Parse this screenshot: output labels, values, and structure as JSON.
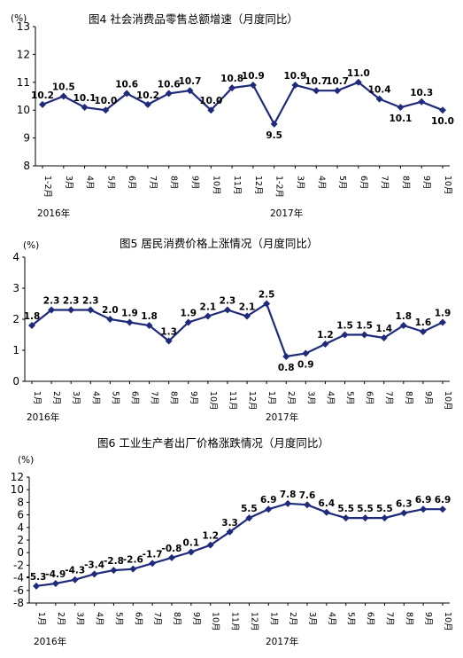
{
  "chart_data": [
    {
      "type": "line",
      "title": "图4  社会消费品零售总额增速（月度同比）",
      "unit": "(%)",
      "ylim": [
        8,
        13
      ],
      "yticks": [
        "8",
        "9",
        "10",
        "11",
        "12",
        "13"
      ],
      "categories": [
        "1-2月",
        "3月",
        "4月",
        "5月",
        "6月",
        "7月",
        "8月",
        "9月",
        "10月",
        "11月",
        "12月",
        "1-2月",
        "3月",
        "4月",
        "5月",
        "6月",
        "7月",
        "8月",
        "9月",
        "10月"
      ],
      "years": [
        "2016年",
        "2017年"
      ],
      "values": [
        10.2,
        10.5,
        10.1,
        10.0,
        10.6,
        10.2,
        10.6,
        10.7,
        10.0,
        10.8,
        10.9,
        9.5,
        10.9,
        10.7,
        10.7,
        11.0,
        10.4,
        10.1,
        10.3,
        10.0
      ],
      "labels": [
        "10.2",
        "10.5",
        "10.1",
        "10.0",
        "10.6",
        "10.2",
        "10.6",
        "10.7",
        "10.0",
        "10.8",
        "10.9",
        "9.5",
        "10.9",
        "10.7",
        "10.7",
        "11.0",
        "10.4",
        "10.1",
        "10.3",
        "10.0"
      ],
      "color": "#1f2a7a",
      "grid": false
    },
    {
      "type": "line",
      "title": "图5  居民消费价格上涨情况（月度同比）",
      "unit": "(%)",
      "ylim": [
        0,
        4
      ],
      "yticks": [
        "0",
        "1",
        "2",
        "3",
        "4"
      ],
      "categories": [
        "1月",
        "2月",
        "3月",
        "4月",
        "5月",
        "6月",
        "7月",
        "8月",
        "9月",
        "10月",
        "11月",
        "12月",
        "1月",
        "2月",
        "3月",
        "4月",
        "5月",
        "6月",
        "7月",
        "8月",
        "9月",
        "10月"
      ],
      "years": [
        "2016年",
        "2017年"
      ],
      "values": [
        1.8,
        2.3,
        2.3,
        2.3,
        2.0,
        1.9,
        1.8,
        1.3,
        1.9,
        2.1,
        2.3,
        2.1,
        2.5,
        0.8,
        0.9,
        1.2,
        1.5,
        1.5,
        1.4,
        1.8,
        1.6,
        1.9
      ],
      "labels": [
        "1.8",
        "2.3",
        "2.3",
        "2.3",
        "2.0",
        "1.9",
        "1.8",
        "1.3",
        "1.9",
        "2.1",
        "2.3",
        "2.1",
        "2.5",
        "0.8",
        "0.9",
        "1.2",
        "1.5",
        "1.5",
        "1.4",
        "1.8",
        "1.6",
        "1.9"
      ],
      "color": "#1f2a7a",
      "grid": false
    },
    {
      "type": "line",
      "title": "图6  工业生产者出厂价格涨跌情况（月度同比）",
      "unit": "(%)",
      "ylim": [
        -8,
        12
      ],
      "yticks": [
        "-8",
        "-6",
        "-4",
        "-2",
        "0",
        "2",
        "4",
        "6",
        "8",
        "10",
        "12"
      ],
      "categories": [
        "1月",
        "2月",
        "3月",
        "4月",
        "5月",
        "6月",
        "7月",
        "8月",
        "9月",
        "10月",
        "11月",
        "12月",
        "1月",
        "2月",
        "3月",
        "4月",
        "5月",
        "6月",
        "7月",
        "8月",
        "9月",
        "10月"
      ],
      "years": [
        "2016年",
        "2017年"
      ],
      "values": [
        -5.3,
        -4.9,
        -4.3,
        -3.4,
        -2.8,
        -2.6,
        -1.7,
        -0.8,
        0.1,
        1.2,
        3.3,
        5.5,
        6.9,
        7.8,
        7.6,
        6.4,
        5.5,
        5.5,
        5.5,
        6.3,
        6.9,
        6.9
      ],
      "labels": [
        "-5.3",
        "-4.9",
        "-4.3",
        "-3.4",
        "-2.8",
        "-2.6",
        "-1.7",
        "-0.8",
        "0.1",
        "1.2",
        "3.3",
        "5.5",
        "6.9",
        "7.8",
        "7.6",
        "6.4",
        "5.5",
        "5.5",
        "5.5",
        "6.3",
        "6.9",
        "6.9"
      ],
      "color": "#1f2a7a",
      "grid": false
    }
  ]
}
